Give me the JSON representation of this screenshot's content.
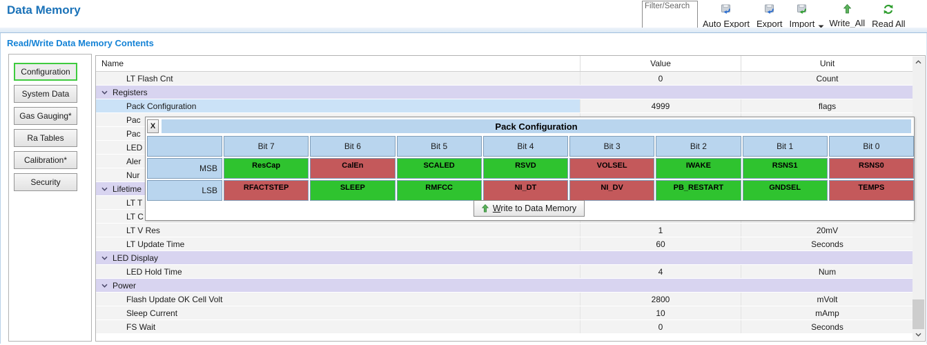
{
  "header": {
    "title": "Data Memory",
    "filter_label": "Filter/Search"
  },
  "toolbar": {
    "buttons": [
      {
        "label": "Auto Export",
        "icon": "export-disk-blue-icon"
      },
      {
        "label": "Export",
        "icon": "export-disk-blue-icon"
      },
      {
        "label": "Import",
        "icon": "import-disk-green-icon"
      },
      {
        "label": "Write_All",
        "icon": "write-all-up-arrow-icon"
      },
      {
        "label": "Read All",
        "icon": "read-all-refresh-icon"
      }
    ]
  },
  "subtitle": "Read/Write Data Memory Contents",
  "sidebar": {
    "items": [
      {
        "label": "Configuration",
        "selected": true
      },
      {
        "label": "System Data",
        "selected": false
      },
      {
        "label": "Gas Gauging*",
        "selected": false
      },
      {
        "label": "Ra Tables",
        "selected": false
      },
      {
        "label": "Calibration*",
        "selected": false
      },
      {
        "label": "Security",
        "selected": false
      }
    ]
  },
  "table": {
    "columns": [
      "Name",
      "Value",
      "Unit"
    ],
    "rows": [
      {
        "type": "item",
        "name": "LT Flash Cnt",
        "value": "0",
        "unit": "Count",
        "selected": false
      },
      {
        "type": "section",
        "name": "Registers"
      },
      {
        "type": "item",
        "name": "Pack Configuration",
        "value": "4999",
        "unit": "flags",
        "selected": true
      },
      {
        "type": "item",
        "name": "Pac",
        "value": "",
        "unit": "",
        "selected": false
      },
      {
        "type": "item",
        "name": "Pac",
        "value": "",
        "unit": "",
        "selected": false
      },
      {
        "type": "item",
        "name": "LED",
        "value": "",
        "unit": "",
        "selected": false
      },
      {
        "type": "item",
        "name": "Aler",
        "value": "",
        "unit": "",
        "selected": false
      },
      {
        "type": "item",
        "name": "Nur",
        "value": "",
        "unit": "",
        "selected": false
      },
      {
        "type": "section",
        "name": "Lifetime"
      },
      {
        "type": "item",
        "name": "LT T",
        "value": "",
        "unit": "",
        "selected": false
      },
      {
        "type": "item",
        "name": "LT C",
        "value": "",
        "unit": "",
        "selected": false
      },
      {
        "type": "item",
        "name": "LT V Res",
        "value": "1",
        "unit": "20mV",
        "selected": false
      },
      {
        "type": "item",
        "name": "LT Update Time",
        "value": "60",
        "unit": "Seconds",
        "selected": false
      },
      {
        "type": "section",
        "name": "LED Display"
      },
      {
        "type": "item",
        "name": "LED Hold Time",
        "value": "4",
        "unit": "Num",
        "selected": false
      },
      {
        "type": "section",
        "name": "Power"
      },
      {
        "type": "item",
        "name": "Flash Update OK Cell Volt",
        "value": "2800",
        "unit": "mVolt",
        "selected": false
      },
      {
        "type": "item",
        "name": "Sleep Current",
        "value": "10",
        "unit": "mAmp",
        "selected": false
      },
      {
        "type": "item",
        "name": "FS Wait",
        "value": "0",
        "unit": "Seconds",
        "selected": false
      }
    ]
  },
  "popup": {
    "close_label": "X",
    "title": "Pack Configuration",
    "bit_columns": [
      "Bit 7",
      "Bit 6",
      "Bit 5",
      "Bit 4",
      "Bit 3",
      "Bit 2",
      "Bit 1",
      "Bit 0"
    ],
    "rows": [
      {
        "label": "MSB",
        "cells": [
          {
            "text": "ResCap",
            "state": "green"
          },
          {
            "text": "CalEn",
            "state": "red"
          },
          {
            "text": "SCALED",
            "state": "green"
          },
          {
            "text": "RSVD",
            "state": "green"
          },
          {
            "text": "VOLSEL",
            "state": "red"
          },
          {
            "text": "IWAKE",
            "state": "green"
          },
          {
            "text": "RSNS1",
            "state": "green"
          },
          {
            "text": "RSNS0",
            "state": "red"
          }
        ]
      },
      {
        "label": "LSB",
        "cells": [
          {
            "text": "RFACTSTEP",
            "state": "red"
          },
          {
            "text": "SLEEP",
            "state": "green"
          },
          {
            "text": "RMFCC",
            "state": "green"
          },
          {
            "text": "NI_DT",
            "state": "red"
          },
          {
            "text": "NI_DV",
            "state": "red"
          },
          {
            "text": "PB_RESTART",
            "state": "green"
          },
          {
            "text": "GNDSEL",
            "state": "green"
          },
          {
            "text": "TEMPS",
            "state": "red"
          }
        ]
      }
    ],
    "write_button": {
      "label": "Write to Data Memory"
    },
    "colors": {
      "green": "#2fc32f",
      "red": "#c4595b",
      "header": "#b9d5ee"
    }
  },
  "colors": {
    "title_blue": "#1a72b8",
    "subtitle_blue": "#1583d6",
    "section_row_bg": "#d8d4f0",
    "selected_row_bg": "#cbe2f7",
    "selected_button_border": "#3ecb3e",
    "toolbar_icon_green": "#2f9e2f",
    "toolbar_icon_blue": "#2e6fd0"
  }
}
